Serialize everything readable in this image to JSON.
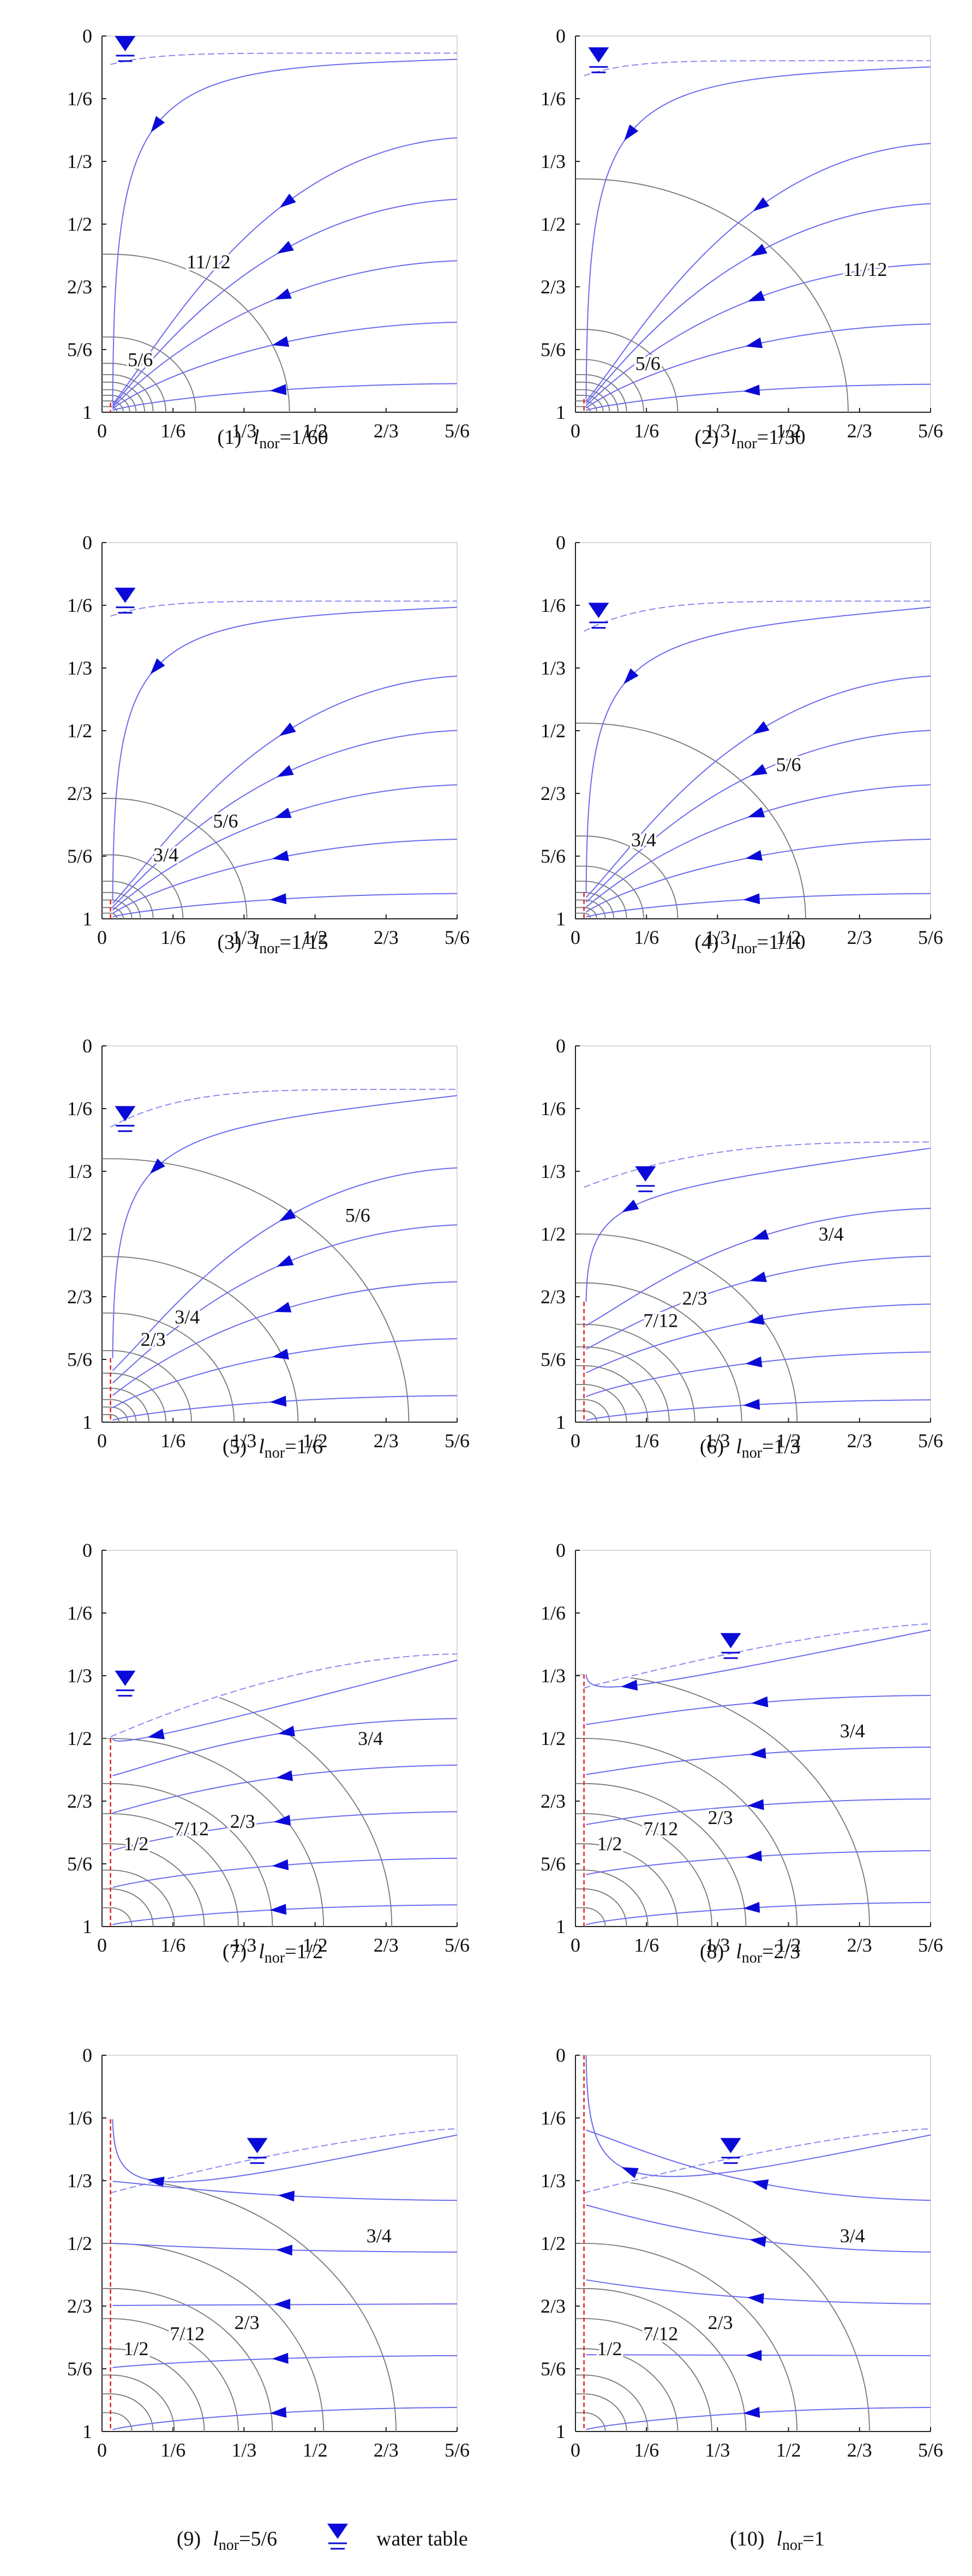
{
  "yticks": [
    "0",
    "1/6",
    "1/3",
    "1/2",
    "2/3",
    "5/6",
    "1"
  ],
  "xticks": [
    "0",
    "1/6",
    "1/3",
    "1/2",
    "2/3",
    "5/6"
  ],
  "panels": [
    {
      "number": "(1)",
      "symbol": "l",
      "subscript": "nor",
      "value": "=1/60",
      "contour_labels": [
        "11/12",
        "5/6"
      ]
    },
    {
      "number": "(2)",
      "symbol": "l",
      "subscript": "nor",
      "value": "=1/30",
      "contour_labels": [
        "11/12",
        "5/6"
      ]
    },
    {
      "number": "(3)",
      "symbol": "l",
      "subscript": "nor",
      "value": "=1/15",
      "contour_labels": [
        "5/6",
        "3/4"
      ]
    },
    {
      "number": "(4)",
      "symbol": "l",
      "subscript": "nor",
      "value": "=1/10",
      "contour_labels": [
        "5/6",
        "3/4"
      ]
    },
    {
      "number": "(5)",
      "symbol": "l",
      "subscript": "nor",
      "value": "=1/6",
      "contour_labels": [
        "5/6",
        "3/4",
        "2/3"
      ]
    },
    {
      "number": "(6)",
      "symbol": "l",
      "subscript": "nor",
      "value": "=1/3",
      "contour_labels": [
        "3/4",
        "2/3",
        "7/12"
      ]
    },
    {
      "number": "(7)",
      "symbol": "l",
      "subscript": "nor",
      "value": "=1/2",
      "contour_labels": [
        "3/4",
        "2/3",
        "7/12",
        "1/2"
      ]
    },
    {
      "number": "(8)",
      "symbol": "l",
      "subscript": "nor",
      "value": "=2/3",
      "contour_labels": [
        "3/4",
        "2/3",
        "7/12",
        "1/2"
      ]
    },
    {
      "number": "(9)",
      "symbol": "l",
      "subscript": "nor",
      "value": "=5/6",
      "contour_labels": [
        "3/4",
        "2/3",
        "7/12",
        "1/2"
      ]
    },
    {
      "number": "(10)",
      "symbol": "l",
      "subscript": "nor",
      "value": "=1",
      "contour_labels": [
        "3/4",
        "2/3",
        "7/12",
        "1/2"
      ]
    }
  ],
  "legend": {
    "label": "water table"
  }
}
